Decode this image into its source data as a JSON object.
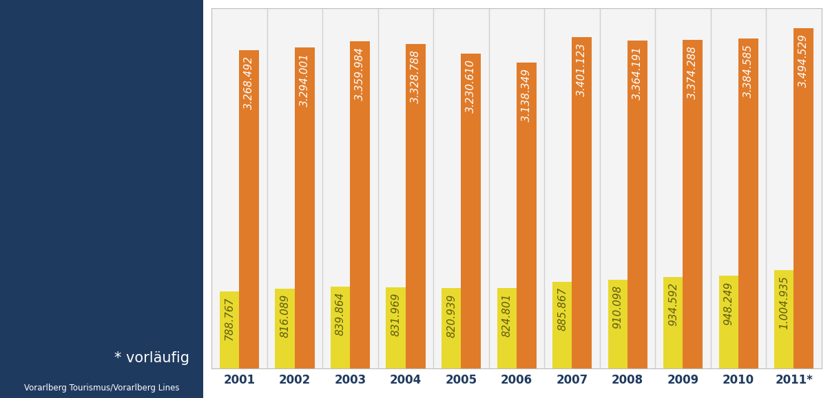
{
  "chart_data": {
    "type": "bar",
    "categories": [
      "2001",
      "2002",
      "2003",
      "2004",
      "2005",
      "2006",
      "2007",
      "2008",
      "2009",
      "2010",
      "2011*"
    ],
    "series": [
      {
        "color": "#e8d92e",
        "values": [
          788767,
          816089,
          839864,
          831969,
          820939,
          824801,
          885867,
          910098,
          934592,
          948249,
          1004935
        ],
        "value_labels": [
          "788.767",
          "816.089",
          "839.864",
          "831.969",
          "820.939",
          "824.801",
          "885.867",
          "910.098",
          "934.592",
          "948.249",
          "1.004.935"
        ]
      },
      {
        "color": "#e07b2a",
        "values": [
          3268492,
          3294001,
          3359984,
          3328788,
          3230610,
          3138349,
          3401123,
          3364191,
          3374288,
          3384585,
          3494529
        ],
        "value_labels": [
          "3.268.492",
          "3.294.001",
          "3.359.984",
          "3.328.788",
          "3.230.610",
          "3.138.349",
          "3.401.123",
          "3.364.191",
          "3.374.288",
          "3.384.585",
          "3.494.529"
        ]
      }
    ],
    "ylim": [
      0,
      3700000
    ],
    "yticks": [],
    "tick_labels": "x",
    "data_labels": true,
    "annotations": [
      "* vorläufig",
      "Vorarlberg Tourismus/Vorarlberg Lines"
    ]
  }
}
